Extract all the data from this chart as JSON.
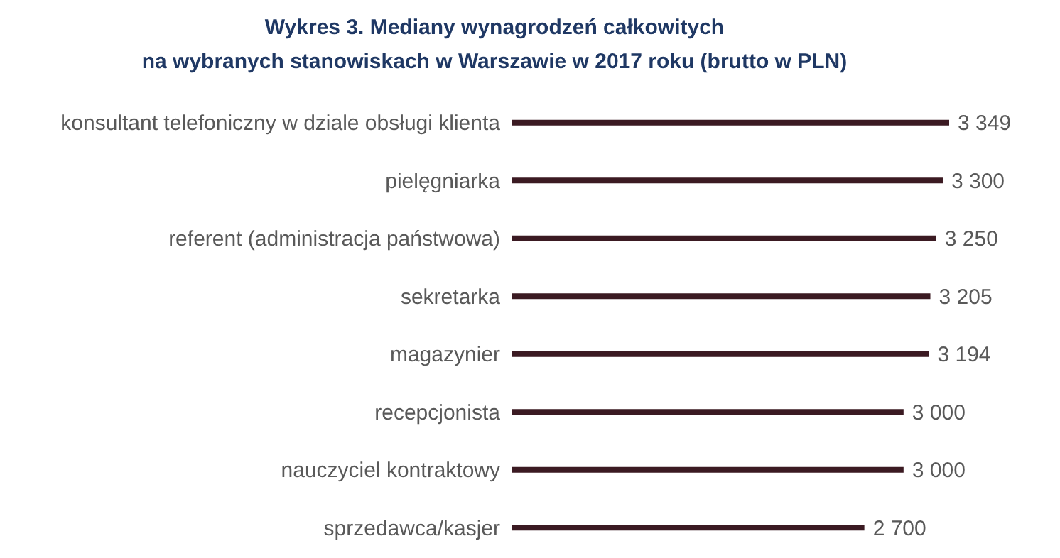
{
  "chart_data": {
    "type": "bar",
    "orientation": "horizontal",
    "title": "Wykres 3. Mediany wynagrodzeń całkowitych\nna wybranych stanowiskach w Warszawie w 2017 roku (brutto w PLN)",
    "categories": [
      "konsultant telefoniczny w dziale obsługi klienta",
      "pielęgniarka",
      "referent (administracja państwowa)",
      "sekretarka",
      "magazynier",
      "recepcjonista",
      "nauczyciel kontraktowy",
      "sprzedawca/kasjer"
    ],
    "values": [
      3349,
      3300,
      3250,
      3205,
      3194,
      3000,
      3000,
      2700
    ],
    "value_labels": [
      "3 349",
      "3 300",
      "3 250",
      "3 205",
      "3 194",
      "3 000",
      "3 000",
      "2 700"
    ],
    "color": "#3b1a22"
  }
}
